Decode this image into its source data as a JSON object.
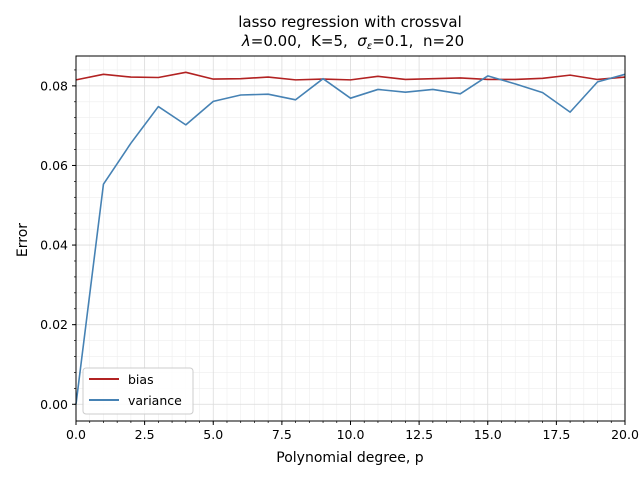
{
  "chart_data": {
    "type": "line",
    "title_line1": "lasso regression with crossval",
    "title_line2": {
      "lambda_symbol": "λ",
      "lambda_value": "=0.00,  K=5,  ",
      "sigma_symbol": "σ",
      "sigma_subscript": "ε",
      "sigma_value": "=0.1,  n=20"
    },
    "xlabel": "Polynomial degree, p",
    "ylabel": "Error",
    "xlim": [
      0,
      20
    ],
    "ylim": [
      -0.0042,
      0.0875
    ],
    "xticks": [
      0.0,
      2.5,
      5.0,
      7.5,
      10.0,
      12.5,
      15.0,
      17.5,
      20.0
    ],
    "xtick_labels": [
      "0.0",
      "2.5",
      "5.0",
      "7.5",
      "10.0",
      "12.5",
      "15.0",
      "17.5",
      "20.0"
    ],
    "yticks": [
      0.0,
      0.02,
      0.04,
      0.06,
      0.08
    ],
    "ytick_labels": [
      "0.00",
      "0.02",
      "0.04",
      "0.06",
      "0.08"
    ],
    "grid": true,
    "legend_position": "lower-left",
    "x": [
      0,
      1,
      2,
      3,
      4,
      5,
      6,
      7,
      8,
      9,
      10,
      11,
      12,
      13,
      14,
      15,
      16,
      17,
      18,
      19,
      20
    ],
    "series": [
      {
        "name": "bias",
        "color": "#b22222",
        "values": [
          0.0815,
          0.0829,
          0.0822,
          0.0821,
          0.0834,
          0.0817,
          0.0818,
          0.0822,
          0.0815,
          0.0817,
          0.0815,
          0.0824,
          0.0816,
          0.0818,
          0.082,
          0.0816,
          0.0816,
          0.0819,
          0.0827,
          0.0816,
          0.0822
        ]
      },
      {
        "name": "variance",
        "color": "#4682b4",
        "values": [
          0.0,
          0.0553,
          0.0656,
          0.0748,
          0.0702,
          0.0761,
          0.0777,
          0.0779,
          0.0765,
          0.0818,
          0.0769,
          0.0791,
          0.0784,
          0.0791,
          0.078,
          0.0825,
          0.0805,
          0.0783,
          0.0734,
          0.081,
          0.0829
        ]
      }
    ]
  }
}
